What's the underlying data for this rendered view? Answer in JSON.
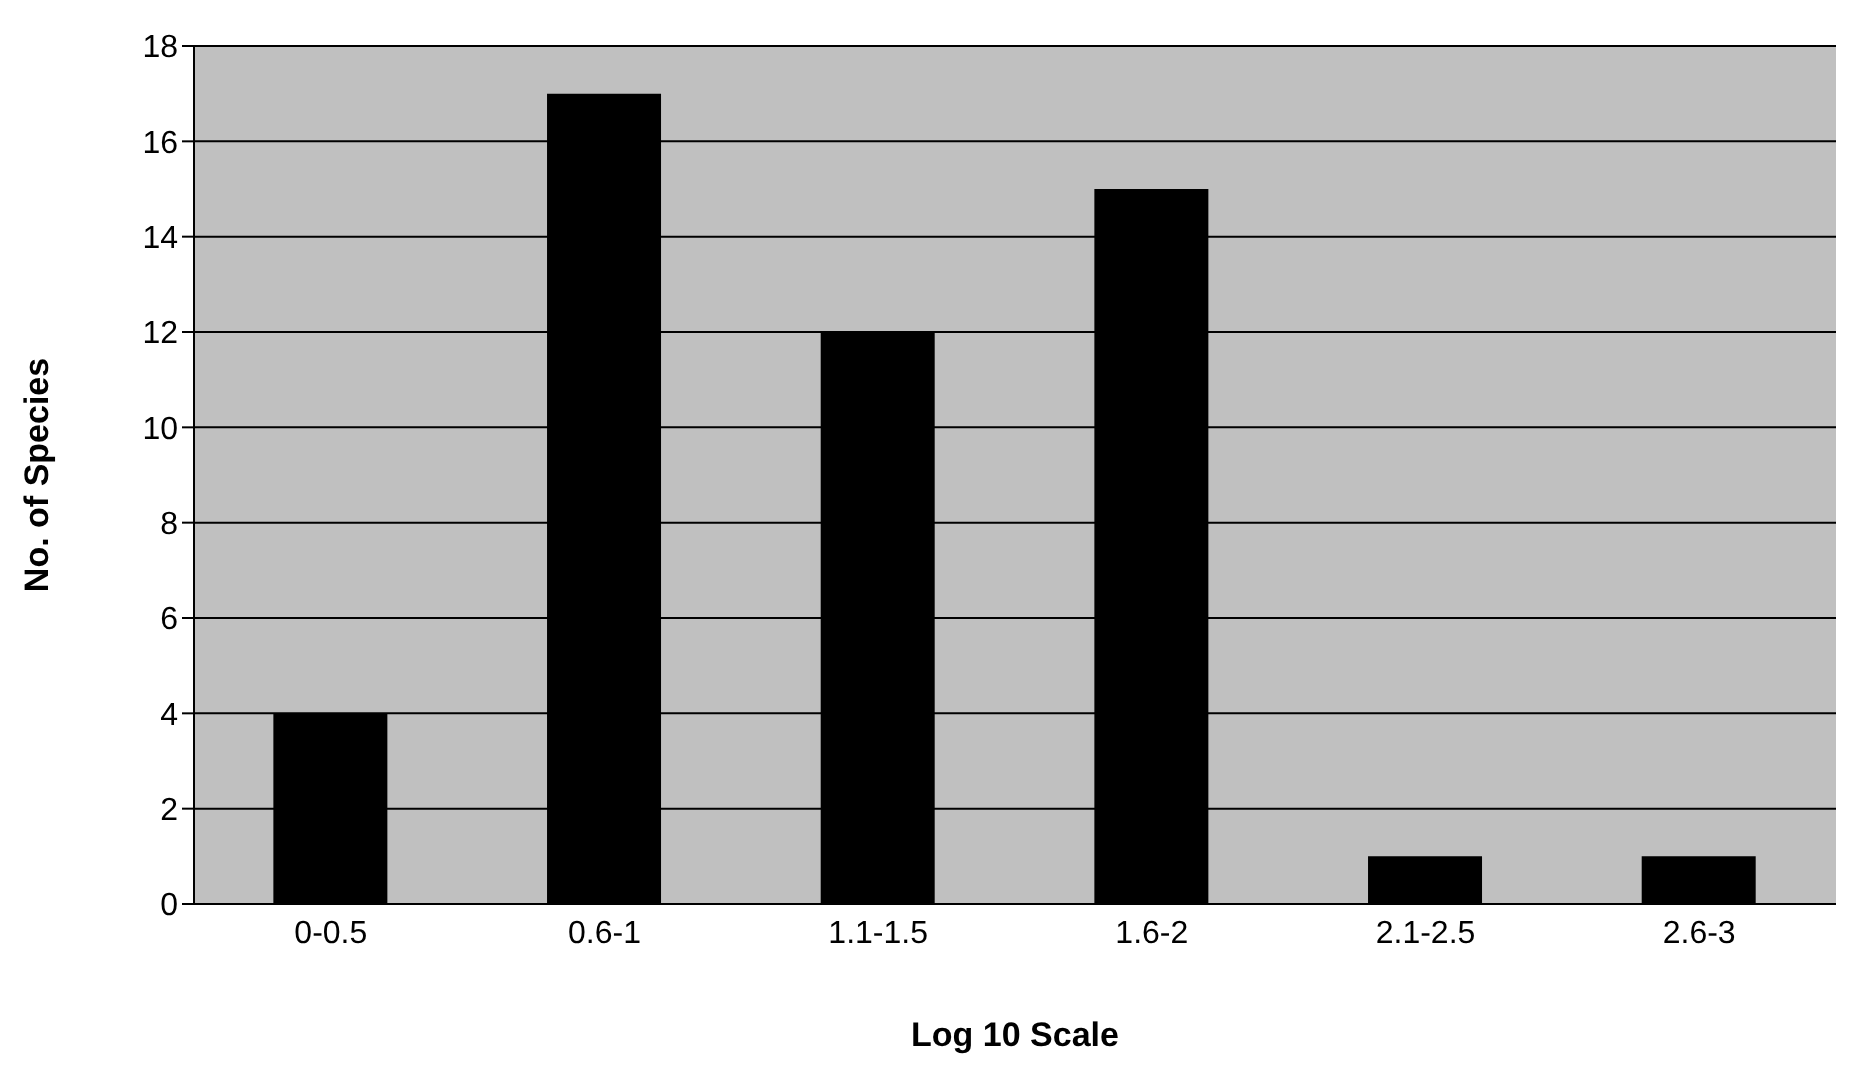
{
  "chart_data": {
    "type": "bar",
    "xlabel": "Log 10 Scale",
    "ylabel": "No. of Species",
    "categories": [
      "0-0.5",
      "0.6-1",
      "1.1-1.5",
      "1.6-2",
      "2.1-2.5",
      "2.6-3"
    ],
    "values": [
      4,
      17,
      12,
      15,
      1,
      1
    ],
    "color": "#000000",
    "ylim": [
      0,
      18
    ],
    "yticks": [
      0,
      2,
      4,
      6,
      8,
      10,
      12,
      14,
      16,
      18
    ],
    "grid": "y"
  }
}
